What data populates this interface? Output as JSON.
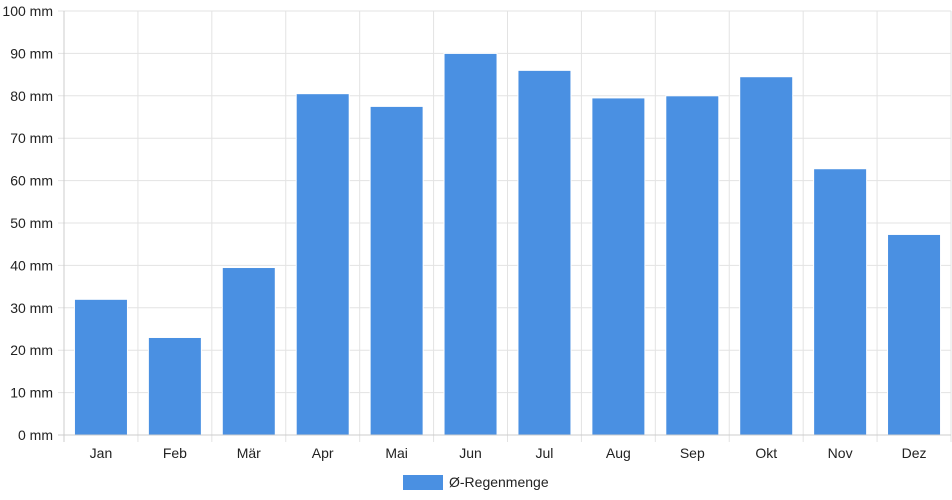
{
  "chart_data": {
    "type": "bar",
    "categories": [
      "Jan",
      "Feb",
      "Mär",
      "Apr",
      "Mai",
      "Jun",
      "Jul",
      "Aug",
      "Sep",
      "Okt",
      "Nov",
      "Dez"
    ],
    "series": [
      {
        "name": "Ø-Regenmenge",
        "color": "#4a90e2",
        "values": [
          32,
          23,
          39.5,
          80.5,
          77.5,
          90,
          86,
          79.5,
          80,
          84.5,
          62.8,
          47.3
        ]
      }
    ],
    "ylim": [
      0,
      100
    ],
    "yticks": [
      "0 mm",
      "10 mm",
      "20 mm",
      "30 mm",
      "40 mm",
      "50 mm",
      "60 mm",
      "70 mm",
      "80 mm",
      "90 mm",
      "100 mm"
    ],
    "grid": true,
    "legend_position": "bottom"
  }
}
